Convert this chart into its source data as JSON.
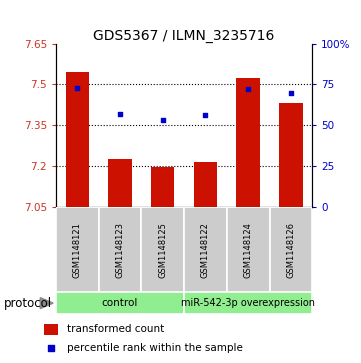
{
  "title": "GDS5367 / ILMN_3235716",
  "samples": [
    "GSM1148121",
    "GSM1148123",
    "GSM1148125",
    "GSM1148122",
    "GSM1148124",
    "GSM1148126"
  ],
  "bar_values": [
    7.545,
    7.225,
    7.195,
    7.215,
    7.525,
    7.43
  ],
  "percentile_values": [
    73,
    57,
    53,
    56,
    72,
    70
  ],
  "ylim_left": [
    7.05,
    7.65
  ],
  "yticks_left": [
    7.05,
    7.2,
    7.35,
    7.5,
    7.65
  ],
  "ylim_right": [
    0,
    100
  ],
  "yticks_right": [
    0,
    25,
    50,
    75,
    100
  ],
  "groups": [
    {
      "label": "control",
      "indices": [
        0,
        1,
        2
      ],
      "color": "#90EE90"
    },
    {
      "label": "miR-542-3p overexpression",
      "indices": [
        3,
        4,
        5
      ],
      "color": "#90EE90"
    }
  ],
  "bar_color": "#cc1100",
  "dot_color": "#0000cc",
  "bar_width": 0.55,
  "label_color_left": "#cc3322",
  "label_color_right": "#0000cc",
  "legend_bar_label": "transformed count",
  "legend_dot_label": "percentile rank within the sample",
  "protocol_label": "protocol",
  "control_label": "control",
  "overexp_label": "miR-542-3p overexpression",
  "sample_bg_color": "#cccccc",
  "title_fontsize": 10,
  "tick_fontsize": 7.5,
  "legend_fontsize": 7.5,
  "sample_fontsize": 6.0,
  "group_fontsize": 7.5,
  "protocol_fontsize": 8.5
}
